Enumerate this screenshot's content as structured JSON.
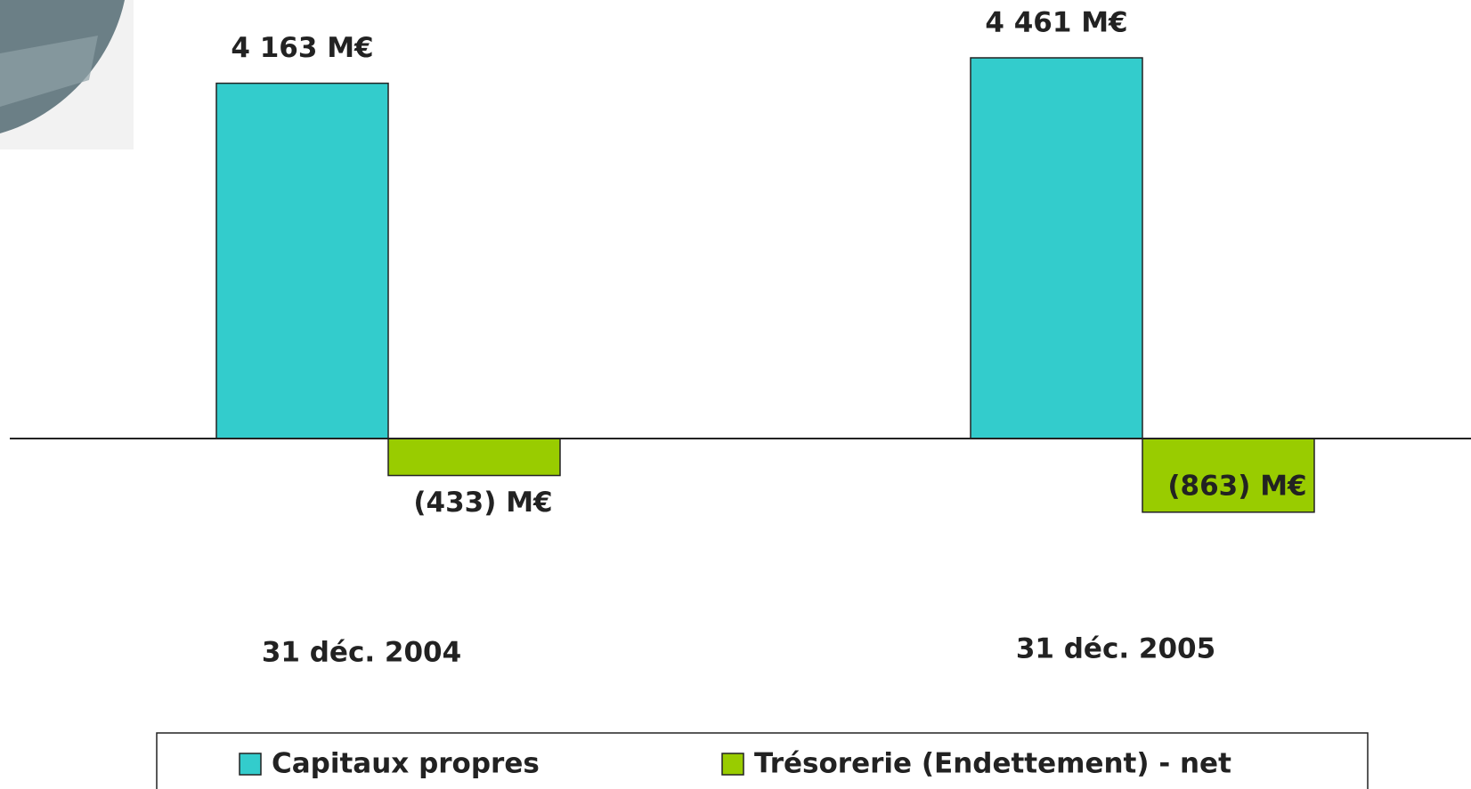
{
  "chart_data": {
    "type": "bar",
    "categories": [
      "31 déc. 2004",
      "31 déc. 2005"
    ],
    "series": [
      {
        "name": "Capitaux propres",
        "color": "#33cccc",
        "values": [
          4163,
          4461
        ],
        "value_labels": [
          "4 163 M€",
          "4 461 M€"
        ]
      },
      {
        "name": "Trésorerie (Endettement) - net",
        "color": "#99cc00",
        "values": [
          -433,
          -863
        ],
        "value_labels": [
          "(433) M€",
          "(863) M€"
        ]
      }
    ]
  }
}
